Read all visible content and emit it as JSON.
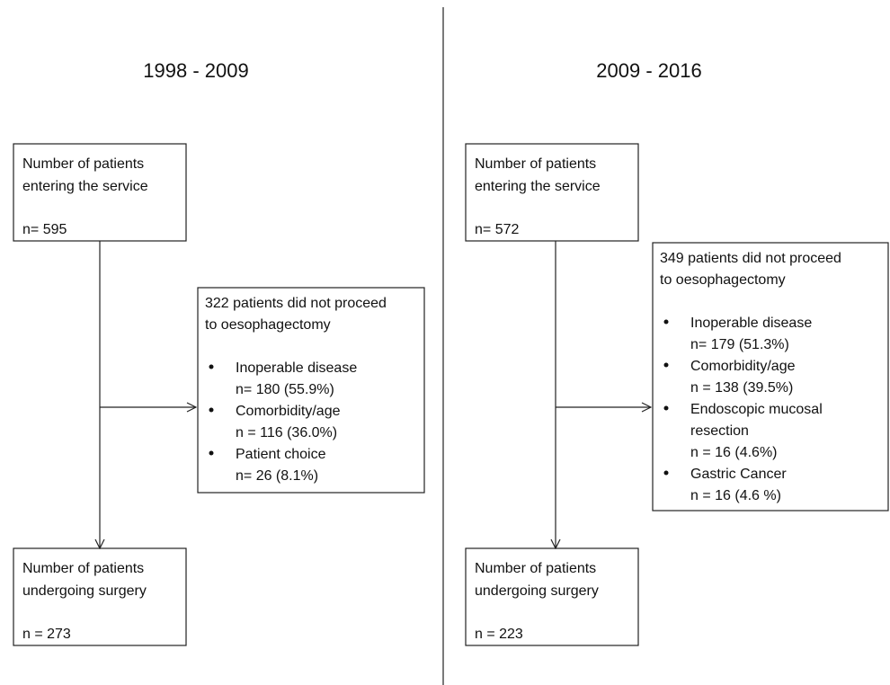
{
  "panels": [
    {
      "title": "1998 - 2009",
      "entry": {
        "lines": [
          "Number of patients",
          "entering the service"
        ],
        "n": "n= 595"
      },
      "excluded": {
        "heading": [
          "322 patients did not proceed",
          "to oesophagectomy"
        ],
        "items": [
          [
            "Inoperable disease",
            "n= 180 (55.9%)"
          ],
          [
            "Comorbidity/age",
            "n = 116 (36.0%)"
          ],
          [
            "Patient  choice",
            "n= 26 (8.1%)"
          ]
        ]
      },
      "surgery": {
        "lines": [
          "Number of patients",
          "undergoing surgery"
        ],
        "n": "n = 273"
      }
    },
    {
      "title": "2009 - 2016",
      "entry": {
        "lines": [
          "Number of patients",
          "entering the service"
        ],
        "n": "n= 572"
      },
      "excluded": {
        "heading": [
          "349 patients did not proceed",
          "to oesophagectomy"
        ],
        "items": [
          [
            "Inoperable disease",
            "n= 179 (51.3%)"
          ],
          [
            "Comorbidity/age",
            "n = 138 (39.5%)"
          ],
          [
            "Endoscopic mucosal",
            "resection",
            "n = 16 (4.6%)"
          ],
          [
            "Gastric Cancer",
            "n = 16 (4.6 %)"
          ]
        ]
      },
      "surgery": {
        "lines": [
          "Number of patients",
          "undergoing surgery"
        ],
        "n": "n = 223"
      }
    }
  ]
}
